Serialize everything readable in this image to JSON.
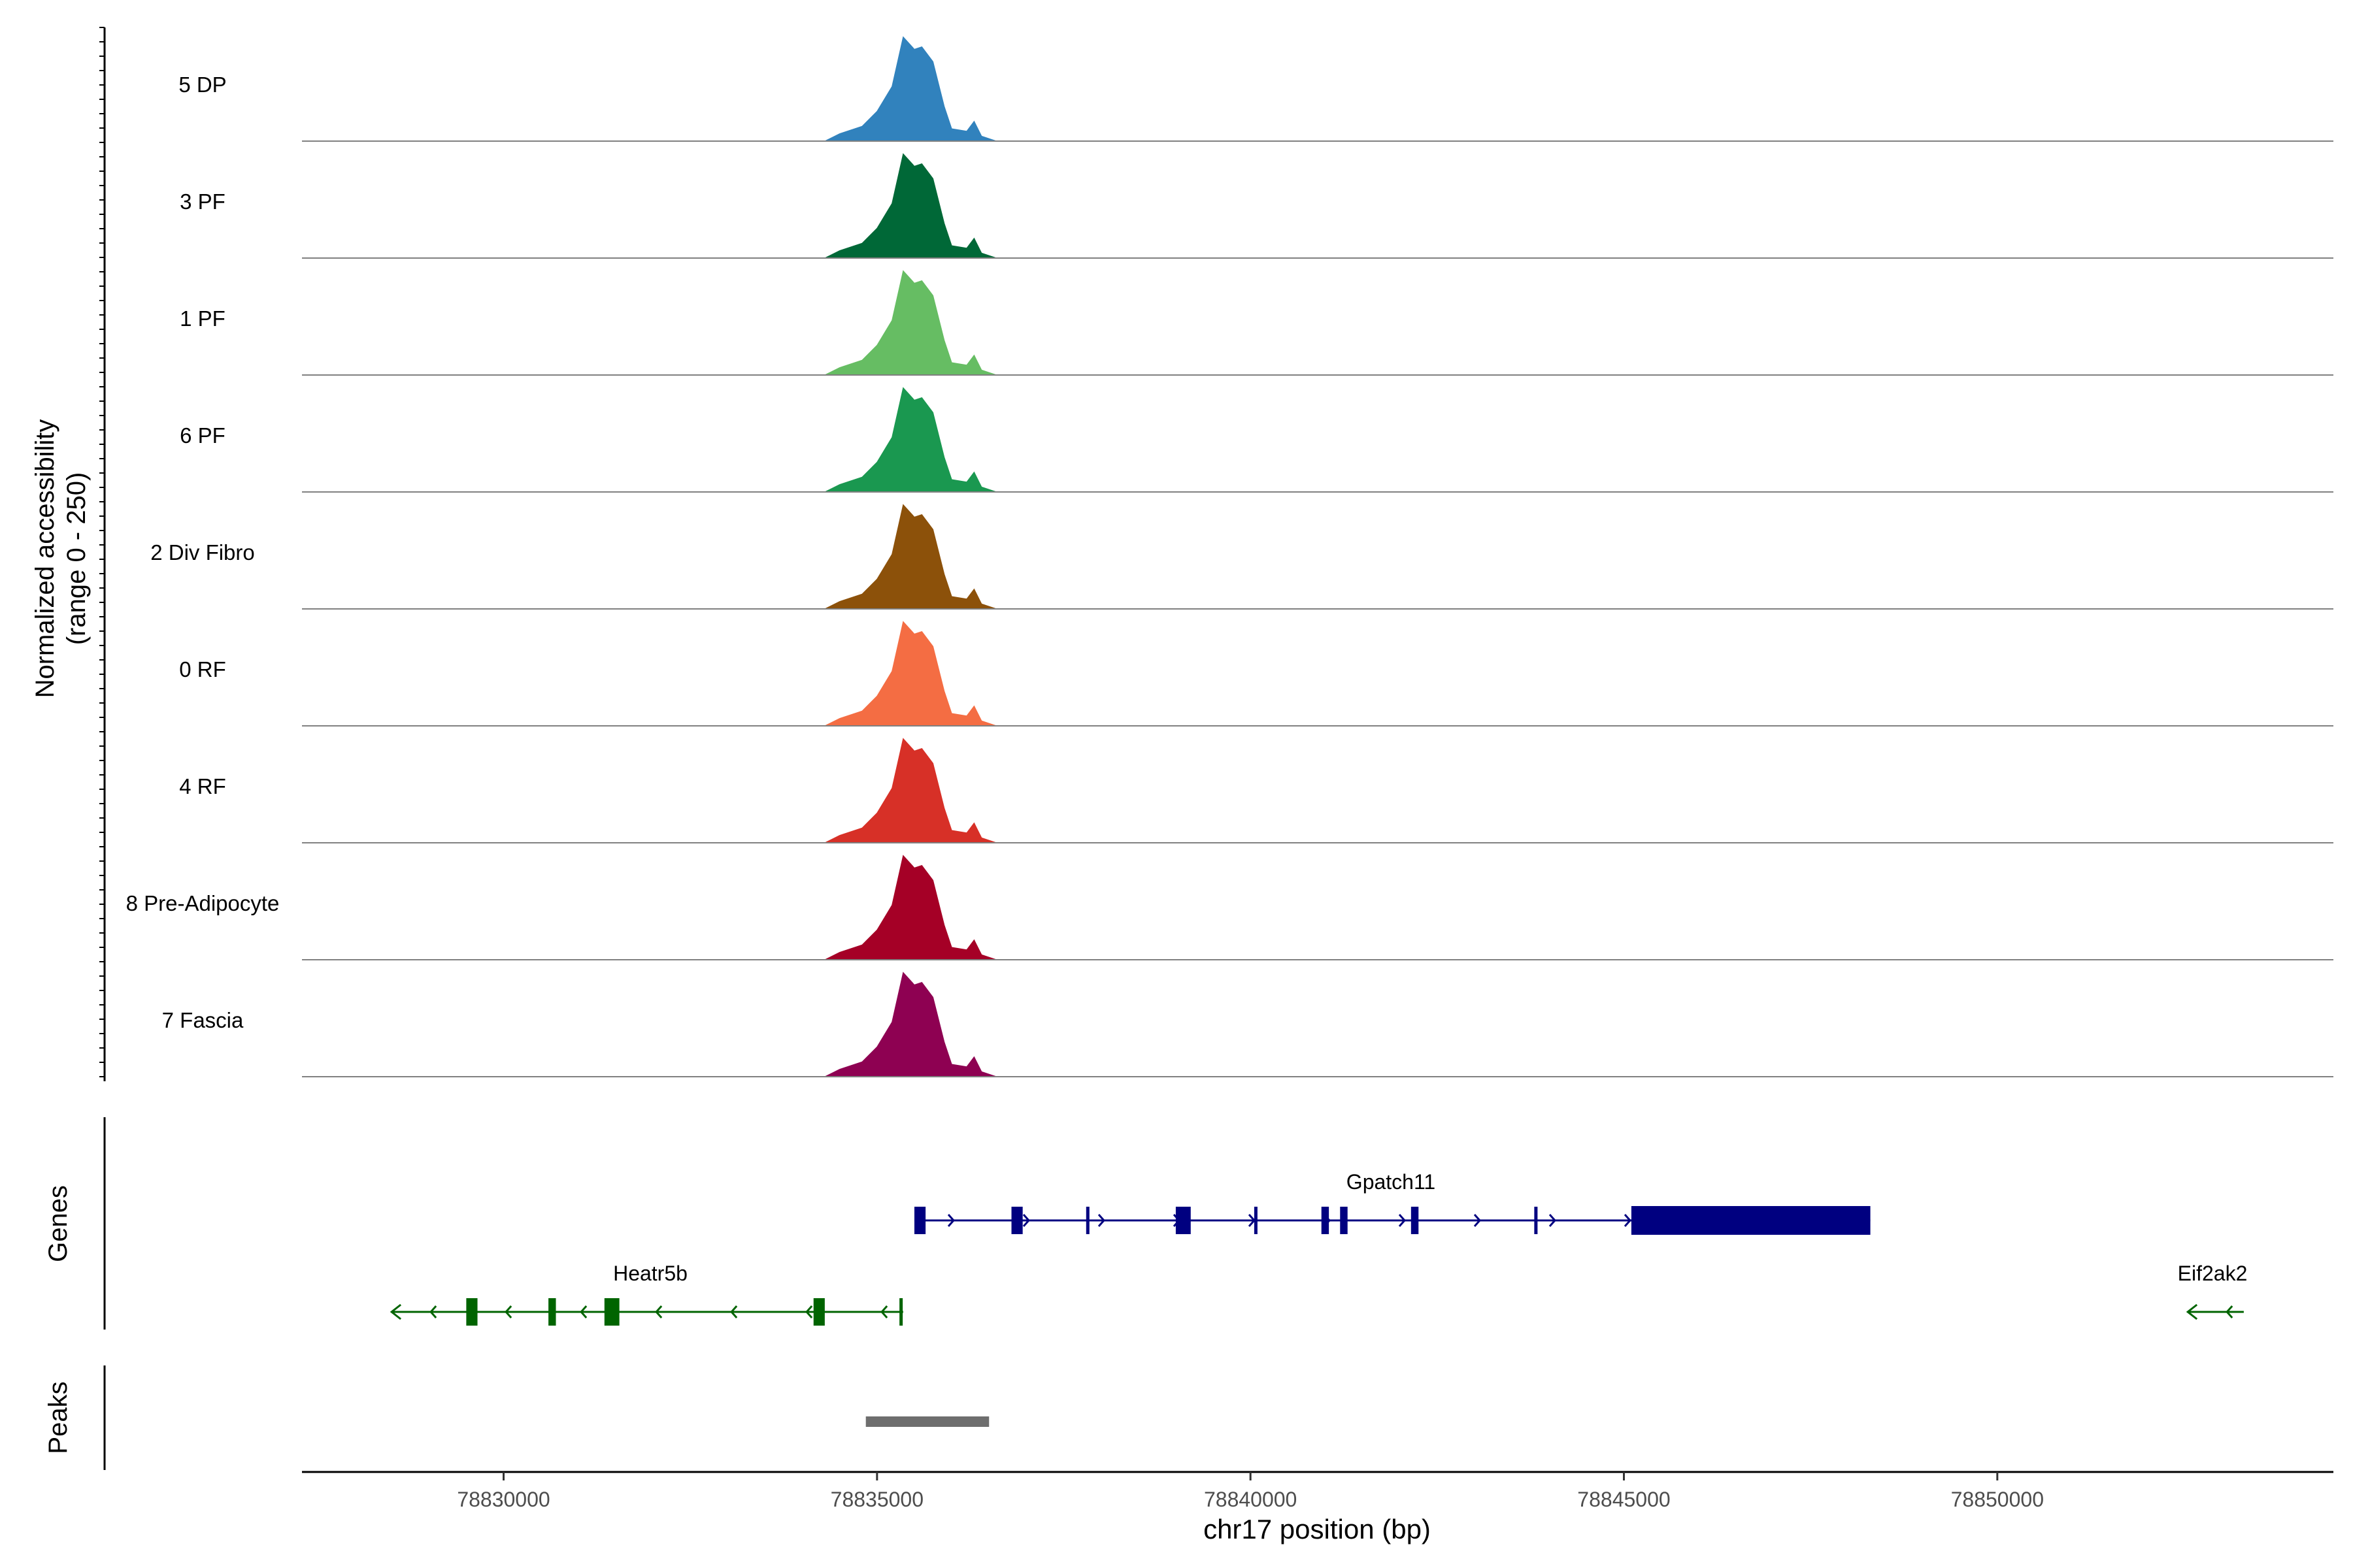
{
  "chart_data": {
    "type": "area",
    "title": "",
    "xlabel": "chr17 position (bp)",
    "ylabel": "Normalized accessibility\n(range 0 - 250)",
    "ylabel_lines": [
      "Normalized accessibility",
      "(range 0 - 250)"
    ],
    "ylim": [
      0,
      250
    ],
    "xlim": [
      78827300,
      78854500
    ],
    "x_ticks": [
      78830000,
      78835000,
      78840000,
      78845000,
      78850000
    ],
    "x_tick_labels": [
      "78830000",
      "78835000",
      "78840000",
      "78845000",
      "78850000"
    ],
    "tracks": [
      {
        "name": "5 DP",
        "color": "#3182BD"
      },
      {
        "name": "3 PF",
        "color": "#006837"
      },
      {
        "name": "1 PF",
        "color": "#66BD63"
      },
      {
        "name": "6 PF",
        "color": "#1A9850"
      },
      {
        "name": "2 Div Fibro",
        "color": "#8C510A"
      },
      {
        "name": "0 RF",
        "color": "#F46D43"
      },
      {
        "name": "4 RF",
        "color": "#D73027"
      },
      {
        "name": "8 Pre-Adipocyte",
        "color": "#A50026"
      },
      {
        "name": "7 Fascia",
        "color": "#8E0152"
      }
    ],
    "accessibility_profile": {
      "x": [
        78834300,
        78834500,
        78834800,
        78835000,
        78835200,
        78835350,
        78835500,
        78835600,
        78835750,
        78835900,
        78836000,
        78836200,
        78836300,
        78836400,
        78836600
      ],
      "y": [
        0,
        15,
        30,
        60,
        110,
        210,
        185,
        190,
        160,
        70,
        25,
        20,
        40,
        10,
        0
      ]
    },
    "genes_track_label": "Genes",
    "genes": [
      {
        "name": "Gpatch11",
        "strand": "+",
        "color": "#000080",
        "start": 78835500,
        "end": 78848300,
        "exons": [
          [
            78835500,
            78835650
          ],
          [
            78836800,
            78836950
          ],
          [
            78837800,
            78837850
          ],
          [
            78839000,
            78839200
          ],
          [
            78840050,
            78840070
          ],
          [
            78840950,
            78841050
          ],
          [
            78841200,
            78841300
          ],
          [
            78842150,
            78842250
          ],
          [
            78843800,
            78843850
          ],
          [
            78845100,
            78848300
          ]
        ]
      },
      {
        "name": "Heatr5b",
        "strand": "-",
        "color": "#006400",
        "start": 78828500,
        "end": 78835350,
        "exons": [
          [
            78829500,
            78829650
          ],
          [
            78830600,
            78830700
          ],
          [
            78831350,
            78831550
          ],
          [
            78834150,
            78834300
          ],
          [
            78835300,
            78835350
          ]
        ]
      },
      {
        "name": "Eif2ak2",
        "strand": "-",
        "color": "#006400",
        "start": 78852550,
        "end": 78853300,
        "exons": []
      }
    ],
    "peaks_track_label": "Peaks",
    "peaks": [
      {
        "start": 78834850,
        "end": 78836500,
        "color": "#6E6E6E"
      }
    ]
  }
}
